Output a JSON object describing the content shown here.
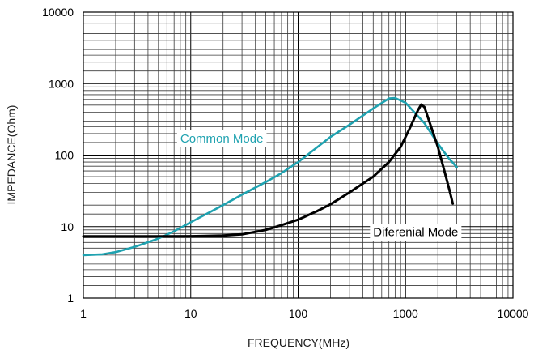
{
  "chart_data": {
    "type": "line",
    "xlabel": "FREQUENCY(MHz)",
    "ylabel": "IMPEDANCE(Ohm)",
    "x_scale": "log",
    "y_scale": "log",
    "xlim": [
      1,
      10000
    ],
    "ylim": [
      1,
      10000
    ],
    "grid": true,
    "x_ticks": [
      "1",
      "10",
      "100",
      "1000",
      "10000"
    ],
    "y_ticks": [
      "1",
      "10",
      "100",
      "1000",
      "10000"
    ],
    "series": [
      {
        "name": "Common Mode",
        "color": "#1fa2b0",
        "x": [
          1,
          1.5,
          2,
          3,
          5,
          7,
          10,
          20,
          30,
          50,
          70,
          100,
          200,
          300,
          500,
          700,
          800,
          1000,
          1500,
          2000,
          2500,
          3000
        ],
        "y": [
          4.0,
          4.1,
          4.4,
          5.2,
          6.8,
          8.6,
          11.5,
          20,
          28,
          42,
          56,
          80,
          180,
          265,
          450,
          620,
          630,
          540,
          280,
          145,
          92,
          68
        ]
      },
      {
        "name": "Diferenial Mode",
        "color": "#000000",
        "x": [
          1,
          2,
          5,
          10,
          20,
          30,
          50,
          70,
          100,
          150,
          200,
          300,
          500,
          700,
          900,
          1100,
          1300,
          1400,
          1500,
          1700,
          2000,
          2300,
          2600,
          2750
        ],
        "y": [
          7.3,
          7.3,
          7.3,
          7.35,
          7.5,
          7.8,
          9.0,
          10.5,
          12.5,
          16.5,
          20.5,
          30,
          50,
          80,
          130,
          240,
          420,
          510,
          470,
          270,
          130,
          60,
          30,
          21
        ]
      }
    ],
    "annotations": [
      {
        "text": "Common Mode",
        "series": "Common Mode",
        "at_x": 8,
        "at_y": 150
      },
      {
        "text": "Diferenial Mode",
        "series": "Diferenial Mode",
        "at_x": 500,
        "at_y": 7.4
      }
    ]
  }
}
